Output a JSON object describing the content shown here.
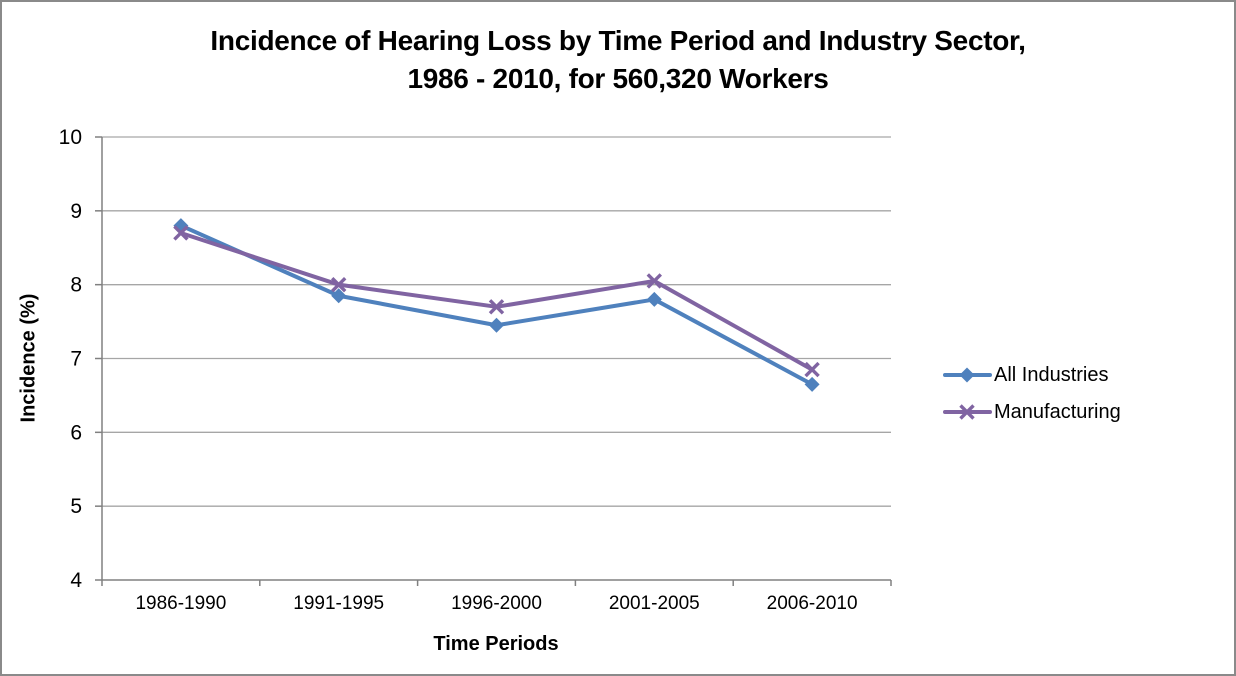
{
  "chart_data": {
    "type": "line",
    "title": "Incidence of Hearing Loss by Time Period and Industry Sector, 1986 - 2010, for 560,320 Workers",
    "title_line1": "Incidence of Hearing Loss by Time Period and Industry Sector,",
    "title_line2": "1986 - 2010, for 560,320 Workers",
    "xlabel": "Time Periods",
    "ylabel": "Incidence (%)",
    "categories": [
      "1986-1990",
      "1991-1995",
      "1996-2000",
      "2001-2005",
      "2006-2010"
    ],
    "series": [
      {
        "name": "All Industries",
        "color": "#4F81BD",
        "marker": "diamond",
        "values": [
          8.8,
          7.85,
          7.45,
          7.8,
          6.65
        ]
      },
      {
        "name": "Manufacturing",
        "color": "#8064A2",
        "marker": "x",
        "values": [
          8.7,
          8.0,
          7.7,
          8.05,
          6.85
        ]
      }
    ],
    "ylim": [
      4,
      10
    ],
    "yticks": [
      10,
      9,
      8,
      7,
      6,
      5,
      4
    ],
    "grid": "horizontal",
    "legend_position": "right",
    "style": {
      "gridline_color": "#A6A6A6",
      "axis_color": "#808080",
      "tick_label_color": "#000000",
      "frame_border_color": "#8A8A8A",
      "background": "#FFFFFF"
    }
  }
}
